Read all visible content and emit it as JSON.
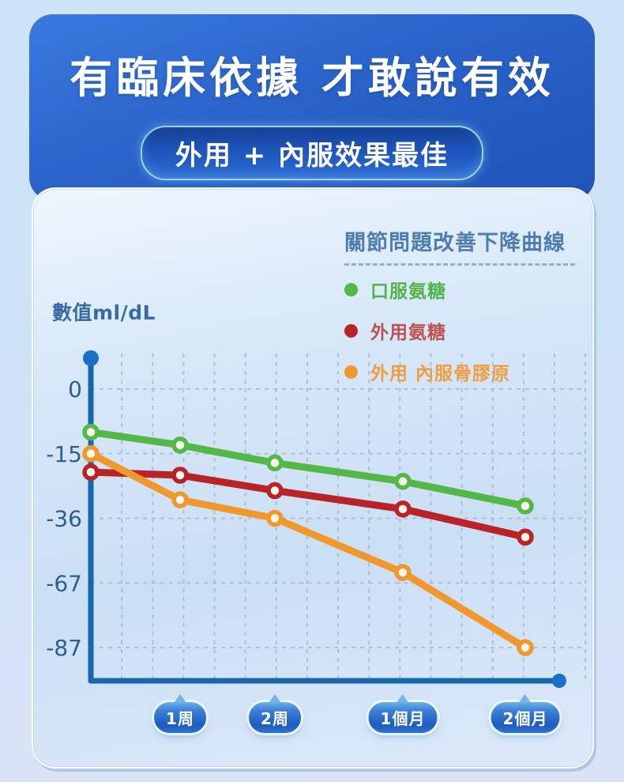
{
  "header": {
    "title": "有臨床依據 才敢說有效",
    "badge": "外用 + 內服效果最佳",
    "banner_color": "#2a63c9",
    "badge_border_color": "#9ed3f2"
  },
  "panel": {
    "legend_title": "關節問題改善下降曲線",
    "y_axis_label": "數值ml/dL"
  },
  "chart_data": {
    "type": "line",
    "title": "關節問題改善下降曲線",
    "ylabel": "數值ml/dL",
    "y_ticks": [
      0,
      -15,
      -36,
      -67,
      -87
    ],
    "x_labels": [
      "",
      "1周",
      "2周",
      "1個月",
      "2個月"
    ],
    "grid": true,
    "legend_position": "top-right",
    "series": [
      {
        "name": "口服氨糖",
        "color": "#53b848",
        "text_color": "#55b34d",
        "values": [
          -10,
          -13,
          -18,
          -24,
          -32
        ]
      },
      {
        "name": "外用氨糖",
        "color": "#b92327",
        "text_color": "#bc5351",
        "values": [
          -21,
          -22,
          -27,
          -33,
          -45
        ]
      },
      {
        "name": "外用 內服骨膠原",
        "color": "#f0982e",
        "text_color": "#ef9d42",
        "values": [
          -15,
          -30,
          -36,
          -62,
          -87
        ]
      }
    ],
    "axis_color": "#1767b0",
    "axis_dot_color": "#1a6fc9",
    "marker_fill": "#fdf7e8",
    "gridline_color": "#a7b8cd",
    "tick_label_color": "#2e5d8e",
    "x_bubble_color": "#2a6fd0"
  }
}
